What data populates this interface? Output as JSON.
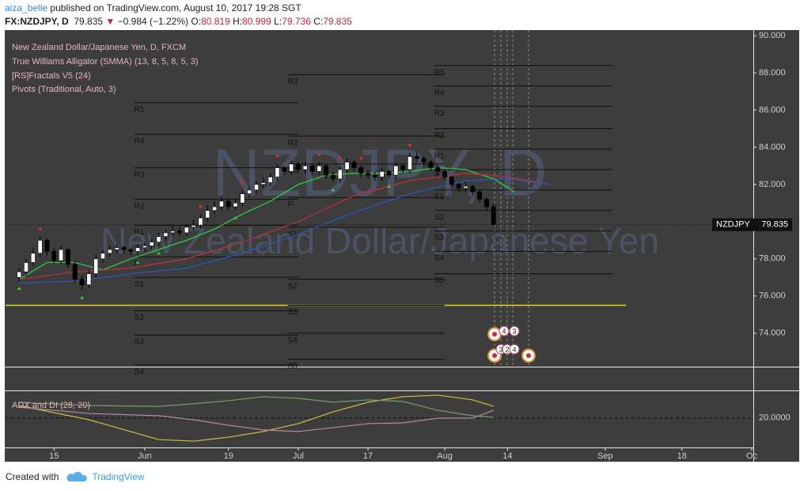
{
  "header": {
    "user": "aiza_belle",
    "published": "published on TradingView.com, August 10, 2017 19:28 SGT",
    "symbol": "FX:NZDJPY, D",
    "arrow": "▼",
    "change": "−0.984 (−1.22%)",
    "o_label": "O:",
    "h_label": "H:",
    "l_label": "L:",
    "c_label": "C:"
  },
  "footer": {
    "created": "Created with",
    "brand": "TradingView"
  },
  "chart_data": {
    "type": "candlestick",
    "legend": [
      "New Zealand Dollar/Japanese Yen, D, FXCM",
      "True Williams Alligator (SMMA) (13, 8, 5, 8, 5, 3)",
      "[RS]Fractals V5 (24)",
      "Pivots (Traditional, Auto, 3)"
    ],
    "watermark": "NZDJPY, D",
    "watermark_sub": "New Zealand Dollar/Japanese Yen",
    "price_label": "NZDJPY",
    "up_color": "#ffffff",
    "down_color": "#000000",
    "xlim": [
      -1.95,
      105
    ],
    "xticks": [
      {
        "value": 5,
        "label": "15"
      },
      {
        "value": 18,
        "label": "Jun"
      },
      {
        "value": 30,
        "label": "19"
      },
      {
        "value": 40,
        "label": "Jul"
      },
      {
        "value": 50,
        "label": "17"
      },
      {
        "value": 61,
        "label": "Aug"
      },
      {
        "value": 70,
        "label": "14"
      },
      {
        "value": 84,
        "label": "Sep"
      },
      {
        "value": 95,
        "label": "18"
      },
      {
        "value": 105,
        "label": "Oc"
      }
    ],
    "ylim": [
      72.2,
      90.3
    ],
    "yticks": [
      {
        "value": 74,
        "label": "74.000"
      },
      {
        "value": 76,
        "label": "76.000"
      },
      {
        "value": 78,
        "label": "78.000"
      },
      {
        "value": 80,
        "label": "80.000"
      },
      {
        "value": 82,
        "label": "82.000"
      },
      {
        "value": 84,
        "label": "84.000"
      },
      {
        "value": 86,
        "label": "86.000"
      },
      {
        "value": 88,
        "label": "88.000"
      },
      {
        "value": 90,
        "label": "90.000"
      }
    ],
    "grid": false,
    "open": [
      77.0,
      77.3,
      77.8,
      78.3,
      79.0,
      78.4,
      77.9,
      78.5,
      77.7,
      76.9,
      76.6,
      77.2,
      78.0,
      78.3,
      78.5,
      78.6,
      78.5,
      78.4,
      78.6,
      78.7,
      78.9,
      79.2,
      79.4,
      79.5,
      79.4,
      79.7,
      79.8,
      80.2,
      80.6,
      80.8,
      81.1,
      80.8,
      81.0,
      81.5,
      81.7,
      82.0,
      82.1,
      82.4,
      82.9,
      82.7,
      83.1,
      82.8,
      83.0,
      82.7,
      83.0,
      82.5,
      82.3,
      82.8,
      83.2,
      82.9,
      82.6,
      82.5,
      82.4,
      82.7,
      82.5,
      83.0,
      82.8,
      83.5,
      83.4,
      83.2,
      82.9,
      82.7,
      82.4,
      82.0,
      81.8,
      81.9,
      81.6,
      81.2,
      80.819
    ],
    "high": [
      77.5,
      78.0,
      78.6,
      79.2,
      79.1,
      78.6,
      78.7,
      78.6,
      77.9,
      77.1,
      77.4,
      78.2,
      78.5,
      78.7,
      78.8,
      78.7,
      78.6,
      78.8,
      78.9,
      79.1,
      79.4,
      79.6,
      79.8,
      79.7,
      79.9,
      80.1,
      80.4,
      80.9,
      81.1,
      81.3,
      81.2,
      81.2,
      81.7,
      81.9,
      82.2,
      82.4,
      82.6,
      83.1,
      83.0,
      83.3,
      83.2,
      83.2,
      83.1,
      83.2,
      83.1,
      82.7,
      83.0,
      83.4,
      83.3,
      83.0,
      82.8,
      82.7,
      82.9,
      82.8,
      83.2,
      83.1,
      83.7,
      83.8,
      83.5,
      83.3,
      83.0,
      82.8,
      82.5,
      82.1,
      82.1,
      82.0,
      81.7,
      81.3,
      80.999
    ],
    "low": [
      76.8,
      77.1,
      77.6,
      78.1,
      78.2,
      77.7,
      77.7,
      77.5,
      76.7,
      76.3,
      76.4,
      77.0,
      77.8,
      78.1,
      78.3,
      78.3,
      78.2,
      78.2,
      78.4,
      78.5,
      78.7,
      79.0,
      79.2,
      79.2,
      79.2,
      79.5,
      79.6,
      80.0,
      80.4,
      80.6,
      80.6,
      80.6,
      80.8,
      81.3,
      81.5,
      81.8,
      81.9,
      82.2,
      82.5,
      82.5,
      82.6,
      82.6,
      82.5,
      82.5,
      82.3,
      82.1,
      82.1,
      82.6,
      82.7,
      82.4,
      82.3,
      82.2,
      82.2,
      82.3,
      82.3,
      82.6,
      82.6,
      83.2,
      83.0,
      82.7,
      82.5,
      82.2,
      81.8,
      81.6,
      81.6,
      81.4,
      81.0,
      80.6,
      79.736
    ],
    "close": [
      77.3,
      77.8,
      78.3,
      79.0,
      78.4,
      77.9,
      78.5,
      77.7,
      76.9,
      76.6,
      77.2,
      78.0,
      78.3,
      78.5,
      78.6,
      78.5,
      78.4,
      78.6,
      78.7,
      78.9,
      79.2,
      79.4,
      79.5,
      79.4,
      79.7,
      79.8,
      80.2,
      80.6,
      80.8,
      81.1,
      80.8,
      81.0,
      81.5,
      81.7,
      82.0,
      82.1,
      82.4,
      82.9,
      82.7,
      83.1,
      82.8,
      83.0,
      82.7,
      83.0,
      82.5,
      82.3,
      82.8,
      83.2,
      82.9,
      82.6,
      82.5,
      82.4,
      82.7,
      82.5,
      83.0,
      82.8,
      83.5,
      83.4,
      83.2,
      82.9,
      82.7,
      82.4,
      82.0,
      81.8,
      81.9,
      81.6,
      81.2,
      80.8,
      79.835
    ],
    "alligator": [
      {
        "name": "Lips",
        "color": "#2ecc40",
        "x": [
          0,
          4,
          8,
          12,
          16,
          20,
          24,
          28,
          32,
          36,
          40,
          44,
          48,
          52,
          56,
          60,
          64,
          68,
          71
        ],
        "values": [
          76.9,
          77.8,
          77.8,
          77.4,
          78.0,
          78.5,
          79.0,
          79.6,
          80.4,
          81.1,
          82.0,
          82.5,
          82.6,
          82.6,
          82.7,
          82.9,
          82.8,
          82.3,
          81.6
        ]
      },
      {
        "name": "Teeth",
        "color": "#b8303a",
        "x": [
          0,
          8,
          16,
          24,
          32,
          40,
          48,
          56,
          64,
          70,
          76
        ],
        "values": [
          76.9,
          77.3,
          77.5,
          78.0,
          78.9,
          80.0,
          81.4,
          82.2,
          82.6,
          82.4,
          82.0
        ]
      },
      {
        "name": "Jaw",
        "color": "#2a57b8",
        "x": [
          0,
          8,
          16,
          24,
          32,
          40,
          48,
          56,
          64,
          70,
          76
        ],
        "values": [
          76.7,
          76.8,
          77.2,
          77.5,
          78.3,
          79.3,
          80.5,
          81.5,
          82.2,
          82.3,
          82.0
        ]
      }
    ],
    "fractals_up": [
      3,
      26,
      32,
      37,
      43,
      46,
      49,
      56
    ],
    "fractals_down": [
      0,
      9,
      17,
      20,
      31,
      45,
      53
    ],
    "support": {
      "value": 75.5,
      "start": -1.95,
      "end": 87,
      "color": "#d8d81a"
    },
    "pivots": [
      {
        "start": 16.5,
        "end": 40,
        "levels": [
          {
            "label": "R5",
            "value": 86.4
          },
          {
            "label": "R4",
            "value": 84.7
          },
          {
            "label": "R3",
            "value": 82.9
          },
          {
            "label": "R2",
            "value": 81.2
          },
          {
            "label": "R1",
            "value": 79.8
          },
          {
            "label": "P",
            "value": 78.1
          },
          {
            "label": "S1",
            "value": 77.0
          },
          {
            "label": "S2",
            "value": 75.2
          },
          {
            "label": "S3",
            "value": 73.9
          },
          {
            "label": "S4",
            "value": 72.3
          }
        ]
      },
      {
        "start": 38.5,
        "end": 61,
        "levels": [
          {
            "label": "R3",
            "value": 87.9
          },
          {
            "label": "R2",
            "value": 84.6
          },
          {
            "label": "R1",
            "value": 83.1
          },
          {
            "label": "P",
            "value": 81.3
          },
          {
            "label": "S1",
            "value": 79.7
          },
          {
            "label": "S2",
            "value": 76.9
          },
          {
            "label": "S3",
            "value": 75.5
          },
          {
            "label": "S4",
            "value": 74.0
          },
          {
            "label": "S5",
            "value": 72.6
          }
        ]
      },
      {
        "start": 59.5,
        "end": 85,
        "levels": [
          {
            "label": "R5",
            "value": 88.4
          },
          {
            "label": "R4",
            "value": 87.3
          },
          {
            "label": "R3",
            "value": 86.2
          },
          {
            "label": "R2",
            "value": 85.0
          },
          {
            "label": "R1",
            "value": 83.9
          },
          {
            "label": "P",
            "value": 82.8
          },
          {
            "label": "S1",
            "value": 81.7
          },
          {
            "label": "S2",
            "value": 80.6
          },
          {
            "label": "S3",
            "value": 79.5
          },
          {
            "label": "S4",
            "value": 78.4
          },
          {
            "label": "S5",
            "value": 77.2
          }
        ]
      }
    ],
    "events": [
      "4",
      "3",
      "3",
      "2",
      "4"
    ],
    "adx_pane": {
      "title": "ADX and DI (28, 20)",
      "ylim": [
        5,
        34
      ],
      "yticks": [
        {
          "value": 20,
          "label": "20.0000"
        }
      ],
      "x": [
        0,
        10,
        20,
        25,
        30,
        35,
        40,
        45,
        50,
        55,
        60,
        65,
        68
      ],
      "series": [
        {
          "name": "ADX",
          "color": "#c8c23a",
          "values": [
            26.3,
            19.1,
            9.0,
            8.2,
            10.2,
            13.1,
            17.1,
            23.1,
            28.0,
            30.8,
            31.6,
            29.2,
            25.9
          ]
        },
        {
          "name": "DI+",
          "color": "#7a9a70",
          "values": [
            28.0,
            26.3,
            25.9,
            27.2,
            28.8,
            30.8,
            30.0,
            28.0,
            29.2,
            28.4,
            23.9,
            21.1,
            20.3
          ]
        },
        {
          "name": "DI-",
          "color": "#b48ca0",
          "values": [
            25.5,
            22.3,
            21.1,
            19.1,
            16.3,
            13.9,
            13.1,
            15.1,
            17.1,
            17.5,
            19.9,
            19.9,
            23.9
          ]
        }
      ]
    }
  }
}
